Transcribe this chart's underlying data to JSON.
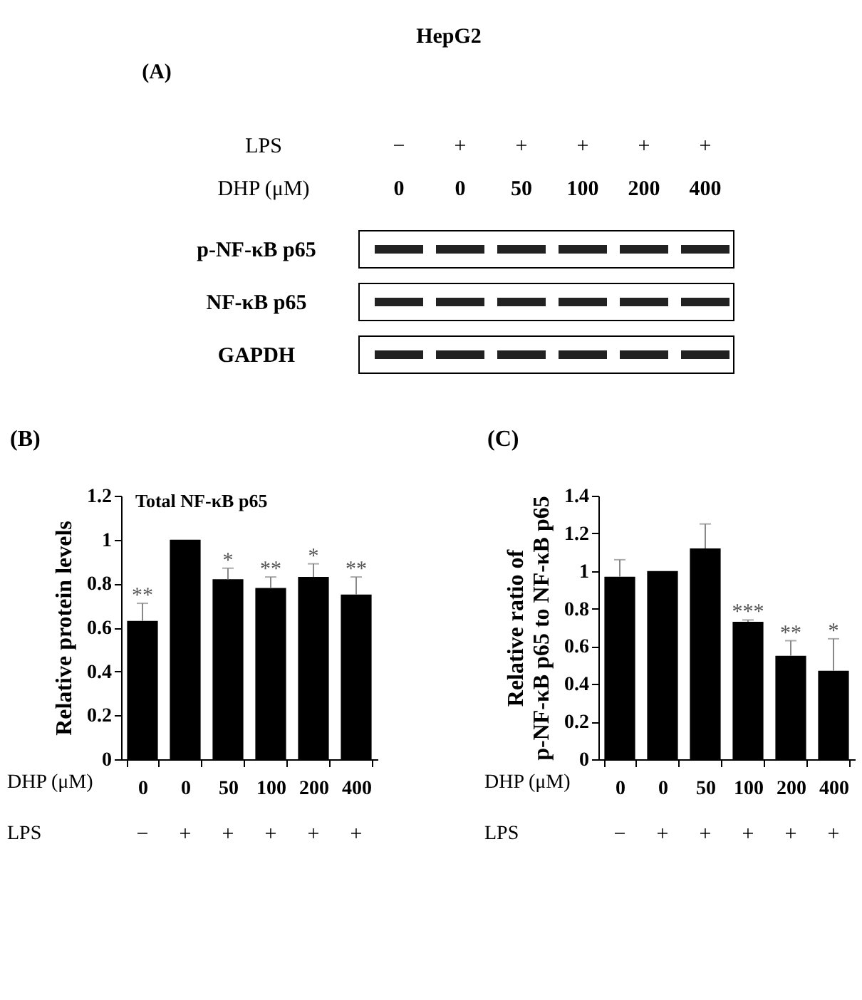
{
  "chart_data": [
    {
      "type": "other",
      "title": "HepG2",
      "categories": [
        "0",
        "0",
        "50",
        "100",
        "200",
        "400"
      ],
      "xlabel": "DHP (μM)",
      "annotations": [
        "(A)",
        "LPS",
        "−",
        "+",
        "+",
        "+",
        "+",
        "+",
        "p-NF-κB p65",
        "NF-κB p65",
        "GAPDH"
      ]
    },
    {
      "type": "bar",
      "title": "Total NF-κB p65",
      "categories": [
        "0",
        "0",
        "50",
        "100",
        "200",
        "400"
      ],
      "xlabel": "DHP  (μM)",
      "ylabel": "Relative  protein levels",
      "values": [
        0.63,
        1.0,
        0.82,
        0.78,
        0.83,
        0.75
      ],
      "color": "#000000",
      "errors": [
        [
          0.63,
          0.71
        ],
        null,
        [
          0.82,
          0.87
        ],
        [
          0.78,
          0.83
        ],
        [
          0.83,
          0.89
        ],
        [
          0.75,
          0.83
        ]
      ],
      "value_labels": [
        "**",
        null,
        "*",
        "**",
        "*",
        "**"
      ],
      "ylim": [
        0,
        1.2
      ],
      "yticks": [
        0,
        0.2,
        0.4,
        0.6,
        0.8,
        1,
        1.2
      ],
      "grid": false,
      "annotations": [
        "(B)",
        "LPS",
        "−",
        "+",
        "+",
        "+",
        "+",
        "+"
      ]
    },
    {
      "type": "bar",
      "categories": [
        "0",
        "0",
        "50",
        "100",
        "200",
        "400"
      ],
      "xlabel": "DHP  (μM)",
      "ylabel": "Relative  ratio of\np-NF-κB p65 to NF-κB p65",
      "values": [
        0.97,
        1.0,
        1.12,
        0.73,
        0.55,
        0.47
      ],
      "color": "#000000",
      "errors": [
        [
          0.97,
          1.06
        ],
        null,
        [
          1.12,
          1.25
        ],
        [
          0.73,
          0.74
        ],
        [
          0.55,
          0.63
        ],
        [
          0.47,
          0.64
        ]
      ],
      "value_labels": [
        null,
        null,
        null,
        "***",
        "**",
        "*"
      ],
      "ylim": [
        0,
        1.4
      ],
      "yticks": [
        0,
        0.2,
        0.4,
        0.6,
        0.8,
        1,
        1.2,
        1.4
      ],
      "grid": false,
      "annotations": [
        "(C)",
        "LPS",
        "−",
        "+",
        "+",
        "+",
        "+",
        "+"
      ]
    }
  ]
}
